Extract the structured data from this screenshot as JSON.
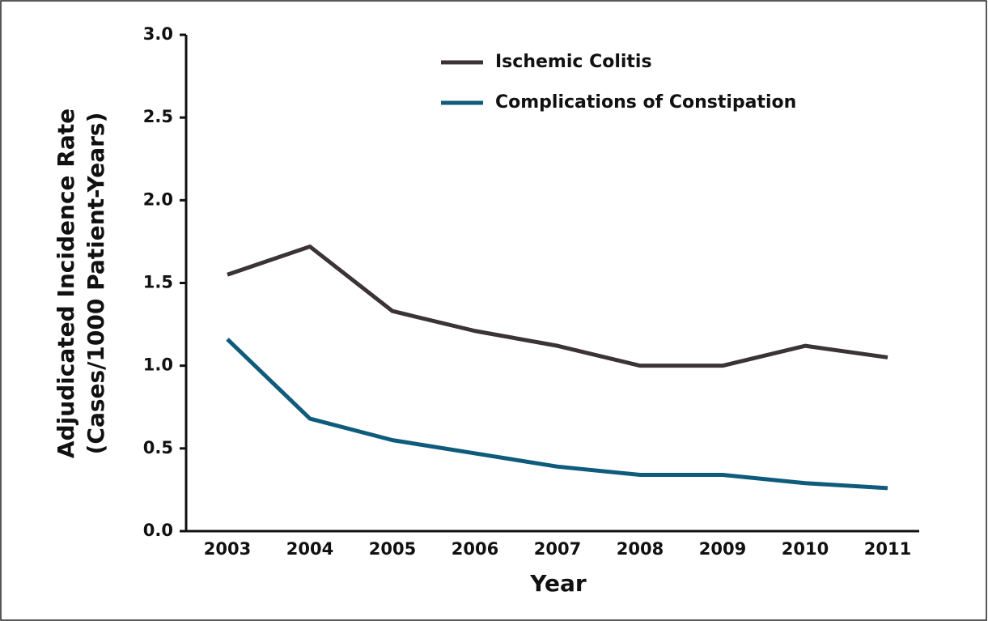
{
  "chart_data": {
    "type": "line",
    "x_label": "Year",
    "y_label": [
      "Adjudicated Incidence Rate",
      "(Cases/1000 Patient-Years)"
    ],
    "categories": [
      "2003",
      "2004",
      "2005",
      "2006",
      "2007",
      "2008",
      "2009",
      "2010",
      "2011"
    ],
    "series": [
      {
        "name": "Ischemic Colitis",
        "color": "#3b3335",
        "values": [
          1.55,
          1.72,
          1.33,
          1.21,
          1.12,
          1.0,
          1.0,
          1.12,
          1.05
        ]
      },
      {
        "name": "Complications of Constipation",
        "color": "#0e5b7c",
        "values": [
          1.16,
          0.68,
          0.55,
          0.47,
          0.39,
          0.34,
          0.34,
          0.29,
          0.26
        ]
      }
    ],
    "ylim": [
      0,
      3.0
    ],
    "yticks": [
      {
        "value": 0,
        "label": "0.0"
      },
      0.5,
      {
        "value": 1,
        "label": "1.0"
      },
      1.5,
      {
        "value": 2,
        "label": "2.0"
      },
      2.5,
      {
        "value": 3,
        "label": "3.0"
      }
    ],
    "legend": "top"
  }
}
